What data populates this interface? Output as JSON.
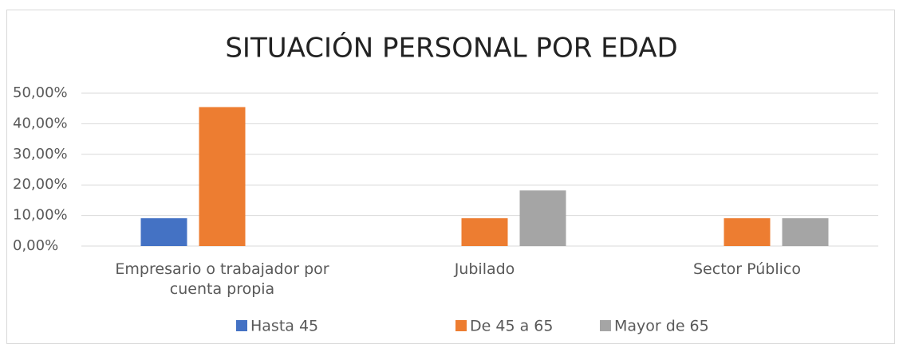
{
  "chart_data": {
    "type": "bar",
    "title": "SITUACIÓN PERSONAL POR EDAD",
    "categories": [
      "Empresario o trabajador por cuenta propia",
      "Jubilado",
      "Sector Público"
    ],
    "series": [
      {
        "name": "Hasta 45",
        "color": "#4472c4",
        "values": [
          9.09,
          0,
          0
        ]
      },
      {
        "name": "De 45 a 65",
        "color": "#ed7d31",
        "values": [
          45.45,
          9.09,
          9.09
        ]
      },
      {
        "name": "Mayor de 65",
        "color": "#a5a5a5",
        "values": [
          0,
          18.18,
          9.09
        ]
      }
    ],
    "ylim": [
      0,
      50
    ],
    "yticks": [
      {
        "value": 0,
        "label": "0,00%"
      },
      {
        "value": 10,
        "label": "10,00%"
      },
      {
        "value": 20,
        "label": "20,00%"
      },
      {
        "value": 30,
        "label": "30,00%"
      },
      {
        "value": 40,
        "label": "40,00%"
      },
      {
        "value": 50,
        "label": "50,00%"
      }
    ],
    "grid": true,
    "legend": "bottom"
  }
}
